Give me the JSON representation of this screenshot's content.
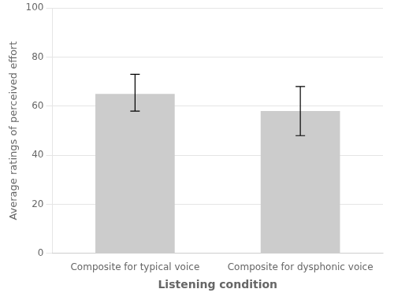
{
  "chart_data": {
    "type": "bar",
    "categories": [
      "Composite for typical voice",
      "Composite for dysphonic voice"
    ],
    "values": [
      65.0,
      58.0
    ],
    "error_upper": [
      8.0,
      10.0
    ],
    "error_lower": [
      7.0,
      10.0
    ],
    "color": "#cccccc",
    "xlabel": "Listening condition",
    "ylabel": "Average ratings of perceived effort",
    "ylim": [
      0,
      100
    ],
    "yticks": [
      0,
      20,
      40,
      60,
      80,
      100
    ],
    "grid": true
  }
}
